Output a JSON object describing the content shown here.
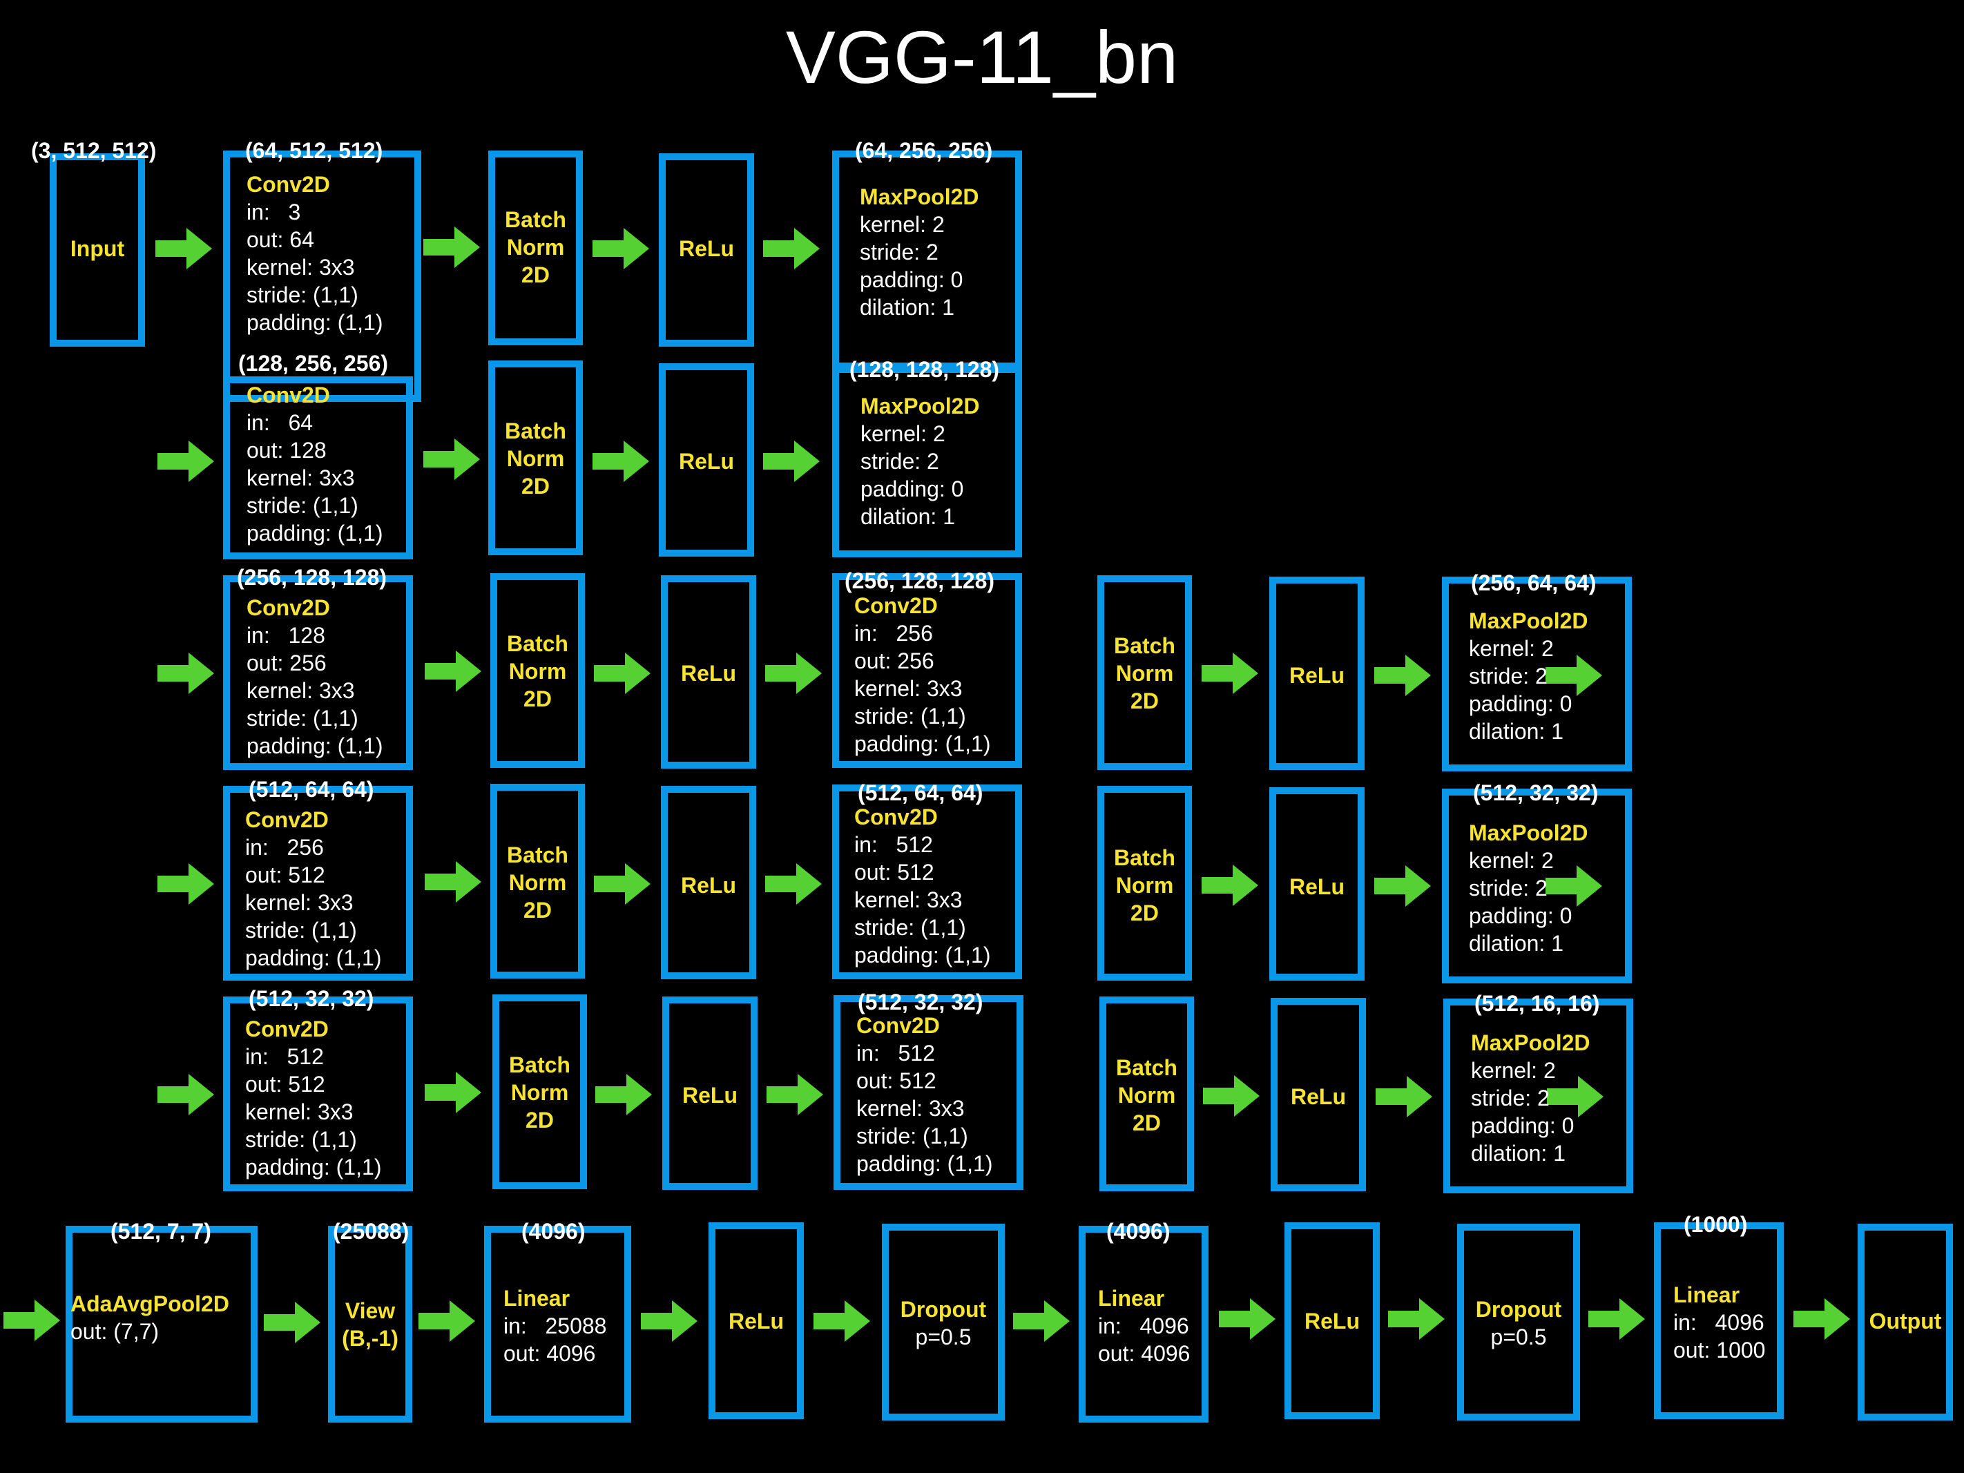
{
  "title": "VGG-11_bn",
  "colors": {
    "box_border": "#0b97e8",
    "arrow": "#56d133",
    "layer_name": "#f7e332",
    "text": "#ffffff",
    "background": "#000000"
  },
  "shapes": {
    "r1_input": "(3, 512, 512)",
    "r1_conv": "(64, 512, 512)",
    "r1_pool": "(64, 256, 256)",
    "r2_conv": "(128, 256, 256)",
    "r2_pool": "(128, 128, 128)",
    "r3_conv": "(256, 128, 128)",
    "r3_conv2": "(256, 128, 128)",
    "r3_pool": "(256, 64, 64)",
    "r4_conv": "(512, 64, 64)",
    "r4_conv2": "(512, 64, 64)",
    "r4_pool": "(512, 32, 32)",
    "r5_conv": "(512, 32, 32)",
    "r5_conv2": "(512, 32, 32)",
    "r5_pool": "(512, 16, 16)",
    "r6_avg": "(512, 7, 7)",
    "r6_view": "(25088)",
    "r6_lin1": "(4096)",
    "r6_lin2": "(4096)",
    "r6_lin3": "(1000)"
  },
  "layers": {
    "input": "Input",
    "conv": "Conv2D",
    "bn": "Batch\nNorm\n2D",
    "relu": "ReLu",
    "pool": "MaxPool2D",
    "avg": "AdaAvgPool2D",
    "view": "View\n(B,-1)",
    "linear": "Linear",
    "dropout": "Dropout",
    "output": "Output"
  },
  "params": {
    "conv_3_64": "in:   3\nout: 64\nkernel: 3x3\nstride: (1,1)\npadding: (1,1)",
    "conv_64_128": "in:   64\nout: 128\nkernel: 3x3\nstride: (1,1)\npadding: (1,1)",
    "conv_128_256": "in:   128\nout: 256\nkernel: 3x3\nstride: (1,1)\npadding: (1,1)",
    "conv_256_256": "in:   256\nout: 256\nkernel: 3x3\nstride: (1,1)\npadding: (1,1)",
    "conv_256_512": "in:   256\nout: 512\nkernel: 3x3\nstride: (1,1)\npadding: (1,1)",
    "conv_512_512": "in:   512\nout: 512\nkernel: 3x3\nstride: (1,1)\npadding: (1,1)",
    "pool": "kernel: 2\nstride: 2\npadding: 0\ndilation: 1",
    "avg": "out: (7,7)",
    "lin1": "in:   25088\nout: 4096",
    "lin2": "in:   4096\nout: 4096",
    "lin3": "in:   4096\nout: 1000",
    "dropout": "p=0.5"
  }
}
